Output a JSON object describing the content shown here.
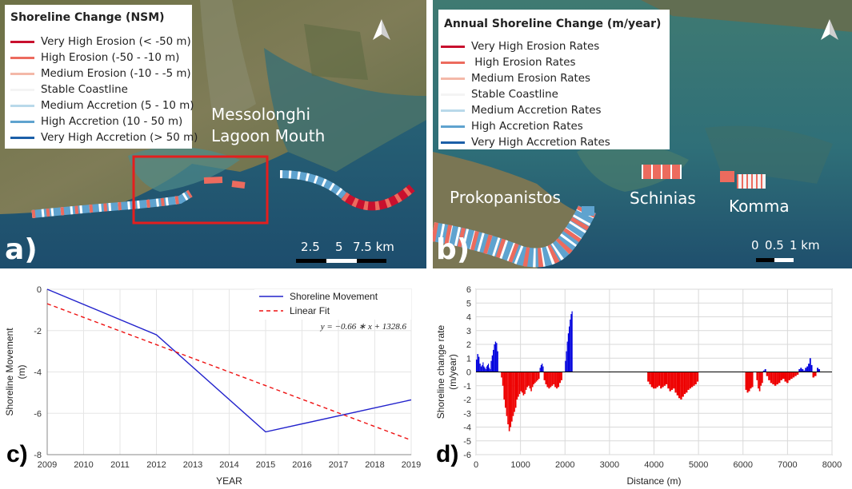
{
  "panel_a": {
    "letter": "a)",
    "legend_title": "Shoreline Change (NSM)",
    "legend": [
      {
        "label": "Very High Erosion (< -50 m)",
        "color": "#c8102e"
      },
      {
        "label": "High Erosion (-50 - -10 m)",
        "color": "#ec6b5e"
      },
      {
        "label": "Medium Erosion (-10 - -5 m)",
        "color": "#f4b8a8"
      },
      {
        "label": "Stable Coastline",
        "color": "#f4f4f4"
      },
      {
        "label": "Medium Accretion (5 - 10 m)",
        "color": "#b9d9ea"
      },
      {
        "label": "High Accretion (10 - 50 m)",
        "color": "#5fa3cf"
      },
      {
        "label": "Very High Accretion (> 50 m)",
        "color": "#1c5fa8"
      }
    ],
    "place_line1": "Messolonghi",
    "place_line2": "Lagoon Mouth",
    "scale_labels": [
      "2.5",
      "5",
      "7.5 km"
    ]
  },
  "panel_b": {
    "letter": "b)",
    "legend_title": "Annual Shoreline Change (m/year)",
    "legend": [
      {
        "label": "Very High Erosion Rates",
        "color": "#c8102e"
      },
      {
        "label": " High Erosion Rates",
        "color": "#ec6b5e"
      },
      {
        "label": "Medium Erosion Rates",
        "color": "#f4b8a8"
      },
      {
        "label": "Stable Coastline",
        "color": "#f4f4f4"
      },
      {
        "label": "Medium Accretion Rates",
        "color": "#b9d9ea"
      },
      {
        "label": "High Accretion Rates",
        "color": "#5fa3cf"
      },
      {
        "label": "Very High Accretion Rates",
        "color": "#1c5fa8"
      }
    ],
    "places": [
      "Prokopanistos",
      "Schinias",
      "Komma"
    ],
    "scale_labels": [
      "0",
      "0.5",
      "1 km"
    ]
  },
  "chart_data": [
    {
      "type": "line",
      "letter": "c)",
      "xlabel": "YEAR",
      "ylabel": [
        "Shoreline Movement",
        "(m)"
      ],
      "x_ticks": [
        2009,
        2010,
        2011,
        2012,
        2013,
        2014,
        2015,
        2016,
        2017,
        2018,
        2019
      ],
      "xlim": [
        2009,
        2019
      ],
      "ylim": [
        -8,
        0
      ],
      "y_ticks": [
        0,
        -2,
        -4,
        -6,
        -8
      ],
      "series": [
        {
          "name": "Shoreline Movement",
          "color": "#2222cc",
          "style": "solid",
          "x": [
            2009,
            2012,
            2015,
            2019
          ],
          "y": [
            0,
            -2.2,
            -6.9,
            -5.35
          ]
        },
        {
          "name": "Linear Fit",
          "color": "#ee1111",
          "style": "dashed",
          "x": [
            2009,
            2019
          ],
          "y": [
            -0.7,
            -7.3
          ]
        }
      ],
      "equation": "y = −0.66 ∗ x + 1328.6"
    },
    {
      "type": "bar",
      "letter": "d)",
      "xlabel": "Distance (m)",
      "ylabel": [
        "Shoreline change rate",
        "(m/year)"
      ],
      "xlim": [
        0,
        8000
      ],
      "x_ticks": [
        0,
        1000,
        2000,
        3000,
        4000,
        5000,
        6000,
        7000,
        8000
      ],
      "ylim": [
        -6,
        6
      ],
      "y_ticks": [
        6,
        5,
        4,
        3,
        2,
        1,
        0,
        -1,
        -2,
        -3,
        -4,
        -5,
        -6
      ],
      "pos_color": "#0000dd",
      "neg_color": "#ee0000",
      "segments": [
        {
          "x0": 0,
          "x1": 130,
          "values": [
            0.9,
            1.3,
            1.1,
            0.6,
            0.4
          ]
        },
        {
          "x0": 130,
          "x1": 330,
          "values": [
            0.5,
            0.7,
            0.4,
            0.3,
            0.2,
            0.4,
            0.5,
            0.6,
            0.3,
            0.2
          ]
        },
        {
          "x0": 330,
          "x1": 500,
          "values": [
            0.8,
            1.2,
            1.6,
            2.0,
            2.2,
            2.1,
            1.5
          ]
        },
        {
          "x0": 560,
          "x1": 1430,
          "values": [
            -0.4,
            -1.0,
            -2.0,
            -2.6,
            -3.2,
            -3.8,
            -4.3,
            -4.0,
            -3.6,
            -3.2,
            -2.9,
            -2.6,
            -2.0,
            -1.8,
            -1.6,
            -1.4,
            -1.5,
            -1.7,
            -1.6,
            -1.3,
            -1.1,
            -1.0,
            -1.2,
            -1.4,
            -1.1,
            -0.9,
            -0.8,
            -0.7,
            -0.6,
            -0.5
          ]
        },
        {
          "x0": 1430,
          "x1": 1520,
          "values": [
            0.3,
            0.5,
            0.6,
            0.4
          ]
        },
        {
          "x0": 1520,
          "x1": 1940,
          "values": [
            -0.6,
            -0.9,
            -1.1,
            -1.2,
            -1.1,
            -1.0,
            -0.9,
            -1.1,
            -1.2,
            -1.1,
            -0.8,
            -0.6
          ]
        },
        {
          "x0": 2000,
          "x1": 2170,
          "values": [
            0.8,
            1.5,
            2.2,
            2.8,
            3.3,
            3.8,
            4.2,
            4.4
          ]
        },
        {
          "x0": 3850,
          "x1": 5000,
          "values": [
            -0.7,
            -0.9,
            -1.1,
            -1.2,
            -1.2,
            -1.1,
            -1.0,
            -1.2,
            -1.1,
            -1.0,
            -0.9,
            -1.2,
            -1.4,
            -1.3,
            -1.2,
            -1.5,
            -1.7,
            -1.9,
            -2.0,
            -1.8,
            -1.6,
            -1.5,
            -1.3,
            -1.2,
            -1.1,
            -1.0,
            -0.9,
            -0.7
          ]
        },
        {
          "x0": 6050,
          "x1": 6230,
          "values": [
            -1.3,
            -1.5,
            -1.4,
            -1.2,
            -1.1
          ]
        },
        {
          "x0": 6300,
          "x1": 6450,
          "values": [
            -0.6,
            -1.2,
            -1.4,
            -1.0,
            -0.8
          ]
        },
        {
          "x0": 6450,
          "x1": 6520,
          "values": [
            0.1,
            0.2
          ]
        },
        {
          "x0": 6520,
          "x1": 7250,
          "values": [
            -0.3,
            -0.6,
            -0.8,
            -0.9,
            -1.0,
            -0.9,
            -0.8,
            -0.6,
            -0.5,
            -0.7,
            -0.8,
            -0.6,
            -0.5,
            -0.4,
            -0.3,
            -0.2
          ]
        },
        {
          "x0": 7250,
          "x1": 7430,
          "values": [
            0.2,
            0.3,
            0.2,
            0.1,
            0.3
          ]
        },
        {
          "x0": 7430,
          "x1": 7560,
          "values": [
            0.4,
            0.6,
            1.0,
            0.5
          ]
        },
        {
          "x0": 7560,
          "x1": 7650,
          "values": [
            -0.4,
            -0.3
          ]
        },
        {
          "x0": 7660,
          "x1": 7730,
          "values": [
            0.3,
            0.2
          ]
        }
      ]
    }
  ]
}
